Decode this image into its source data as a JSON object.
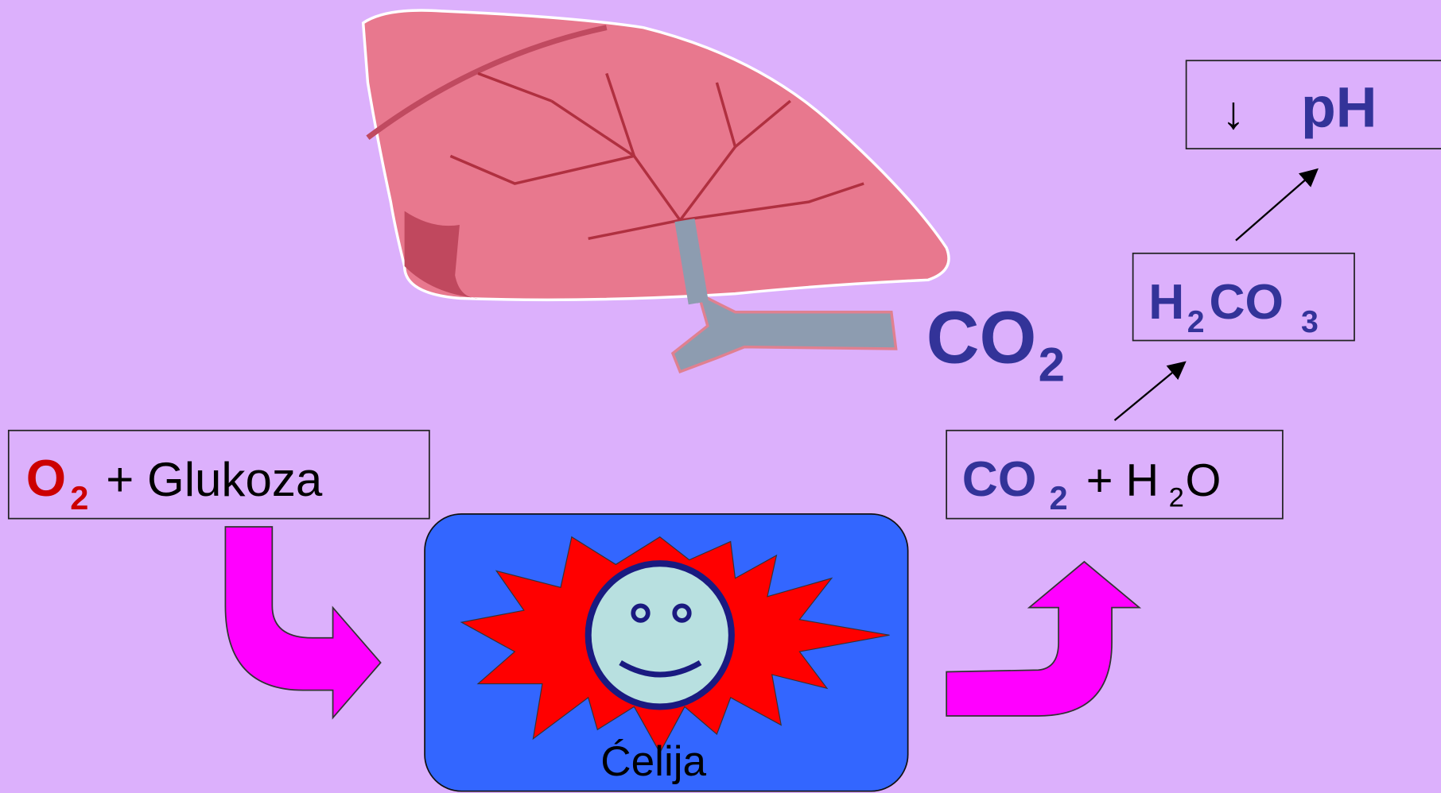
{
  "input_box": {
    "oxygen": "O",
    "oxygen_sub": "2",
    "rest": "+ Glukoza"
  },
  "output_box": {
    "co": "CO",
    "co_sub": "2",
    "plus_h": "+ H",
    "h_sub": "2",
    "o": "O"
  },
  "acid_box": {
    "h": "H",
    "h_sub": "2",
    "co": "CO",
    "co_sub": "3"
  },
  "ph_box": {
    "arrow": "↓",
    "ph": "pH"
  },
  "exhaled": {
    "co": "CO",
    "co_sub": "2"
  },
  "cell": {
    "label": "Ćelija"
  }
}
